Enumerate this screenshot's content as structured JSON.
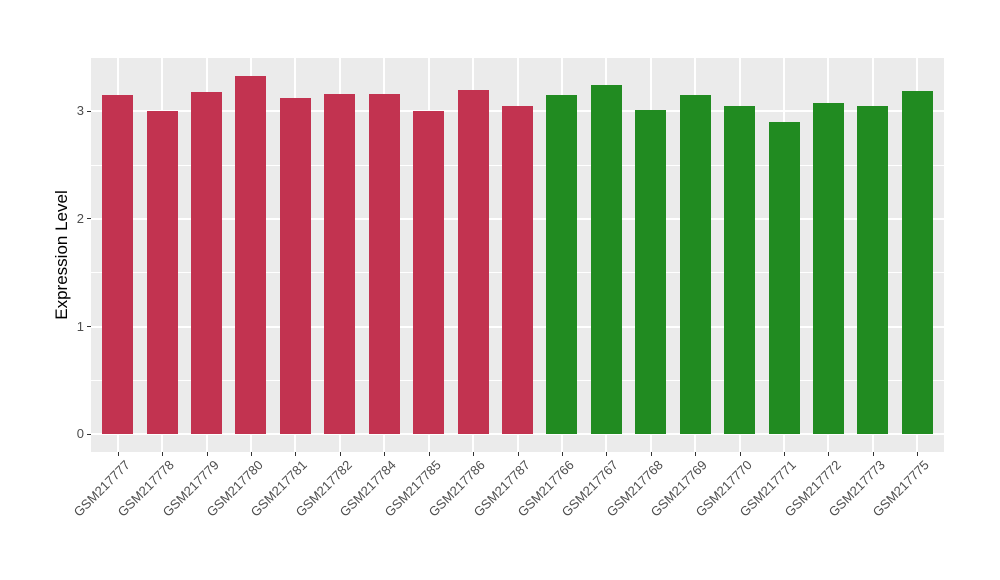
{
  "chart_data": {
    "type": "bar",
    "title": "",
    "xlabel": "",
    "ylabel": "Expression Level",
    "ylim": [
      0,
      3.5
    ],
    "ytick_values": [
      0,
      1,
      2,
      3
    ],
    "ytick_labels": [
      "0",
      "1",
      "2",
      "3"
    ],
    "minor_tick_values": [
      0.5,
      1.5,
      2.5
    ],
    "grid": "on",
    "legend_position": "none",
    "panel_background_color": "#EBEBEB",
    "gridline_color": "#FFFFFF",
    "axis_text_color": "#4d4d4d",
    "axis_tick_color": "#333333",
    "group_colors": {
      "red": "#C23350",
      "green": "#218B21"
    },
    "bars": [
      {
        "label": "GSM217777",
        "value": 3.15,
        "group": "red"
      },
      {
        "label": "GSM217778",
        "value": 3.0,
        "group": "red"
      },
      {
        "label": "GSM217779",
        "value": 3.18,
        "group": "red"
      },
      {
        "label": "GSM217780",
        "value": 3.33,
        "group": "red"
      },
      {
        "label": "GSM217781",
        "value": 3.12,
        "group": "red"
      },
      {
        "label": "GSM217782",
        "value": 3.16,
        "group": "red"
      },
      {
        "label": "GSM217784",
        "value": 3.16,
        "group": "red"
      },
      {
        "label": "GSM217785",
        "value": 3.0,
        "group": "red"
      },
      {
        "label": "GSM217786",
        "value": 3.2,
        "group": "red"
      },
      {
        "label": "GSM217787",
        "value": 3.05,
        "group": "red"
      },
      {
        "label": "GSM217766",
        "value": 3.15,
        "group": "green"
      },
      {
        "label": "GSM217767",
        "value": 3.25,
        "group": "green"
      },
      {
        "label": "GSM217768",
        "value": 3.01,
        "group": "green"
      },
      {
        "label": "GSM217769",
        "value": 3.15,
        "group": "green"
      },
      {
        "label": "GSM217770",
        "value": 3.05,
        "group": "green"
      },
      {
        "label": "GSM217771",
        "value": 2.9,
        "group": "green"
      },
      {
        "label": "GSM217772",
        "value": 3.08,
        "group": "green"
      },
      {
        "label": "GSM217773",
        "value": 3.05,
        "group": "green"
      },
      {
        "label": "GSM217775",
        "value": 3.19,
        "group": "green"
      }
    ]
  }
}
